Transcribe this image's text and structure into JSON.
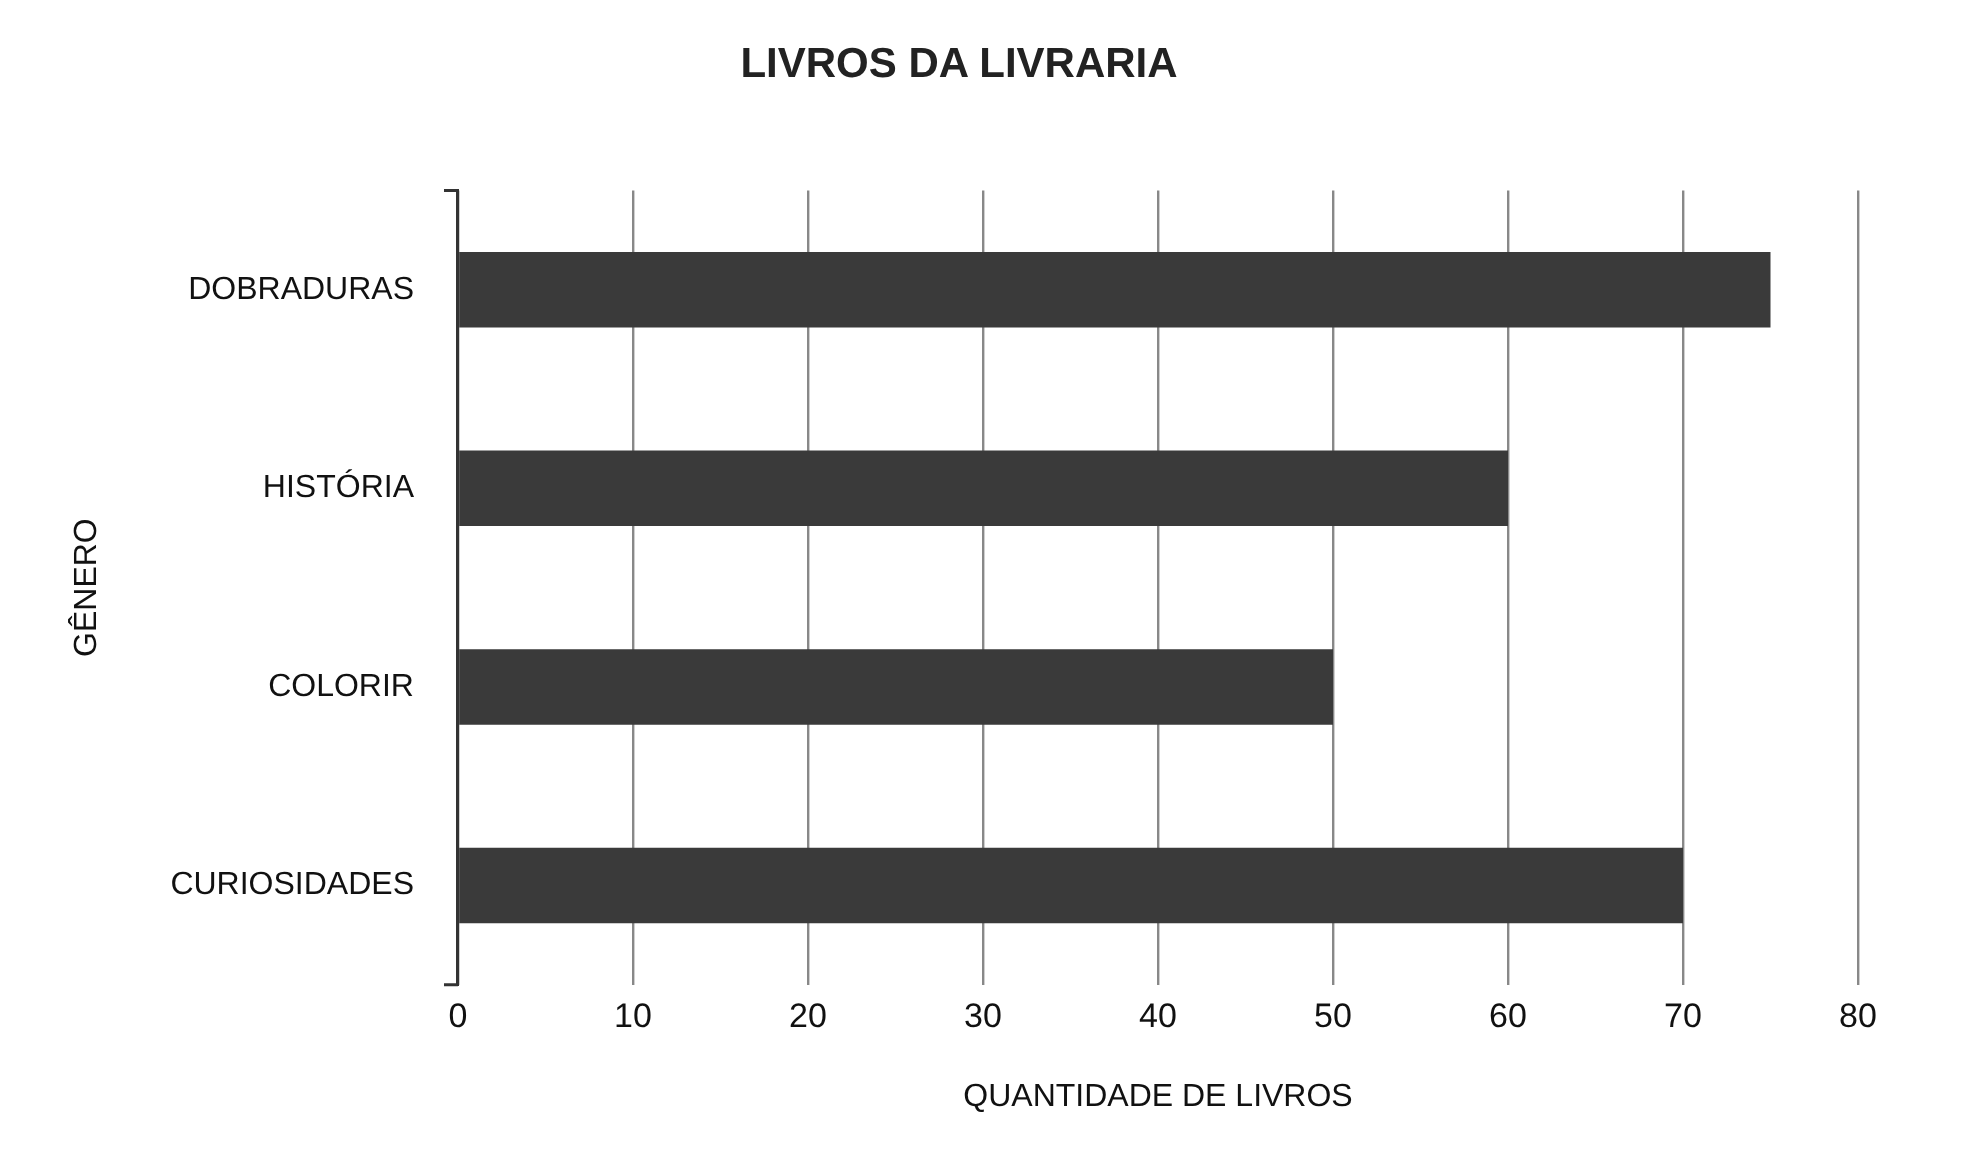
{
  "chart_data": {
    "type": "bar",
    "orientation": "horizontal",
    "title": "LIVROS DA LIVRARIA",
    "xlabel": "QUANTIDADE DE LIVROS",
    "ylabel": "GÊNERO",
    "categories": [
      "DOBRADURAS",
      "HISTÓRIA",
      "COLORIR",
      "CURIOSIDADES"
    ],
    "values": [
      75,
      60,
      50,
      70
    ],
    "color": "#3a3a3a",
    "xlim": [
      0,
      80
    ],
    "xticks": [
      0,
      10,
      20,
      30,
      40,
      50,
      60,
      70,
      80
    ],
    "grid": "x"
  }
}
